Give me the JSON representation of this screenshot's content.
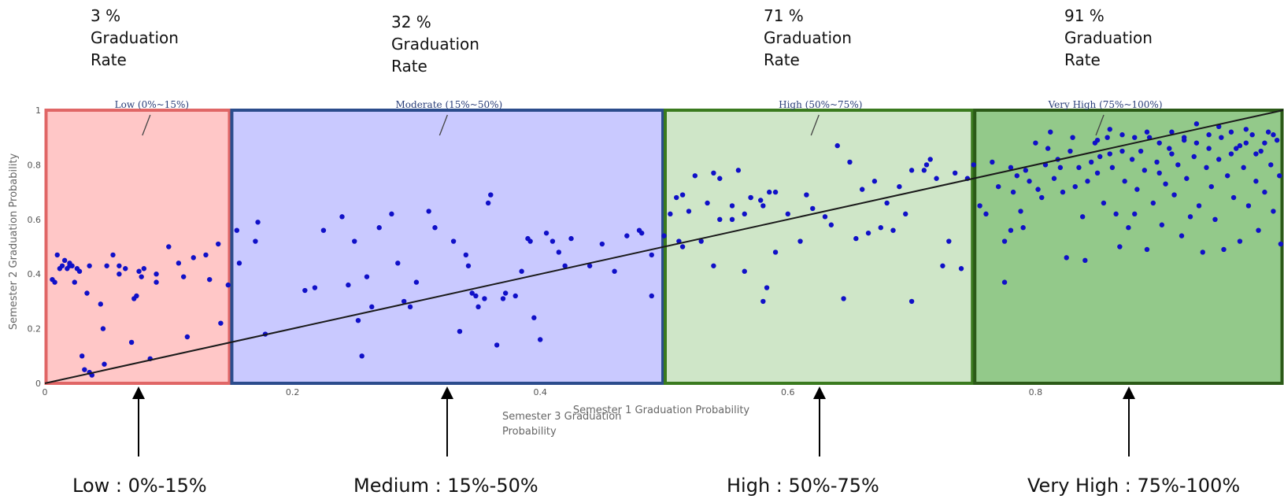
{
  "rates": [
    {
      "value": "3 %",
      "line1": "Graduation",
      "line2": "Rate"
    },
    {
      "value": "32 %",
      "line1": "Graduation",
      "line2": "Rate"
    },
    {
      "value": "71 %",
      "line1": "Graduation",
      "line2": "Rate"
    },
    {
      "value": "91 %",
      "line1": "Graduation",
      "line2": "Rate"
    }
  ],
  "bottom_labels": [
    "Low : 0%-15%",
    "Medium : 15%-50%",
    "High : 50%-75%",
    "Very High : 75%-100%"
  ],
  "overlay_xlabel_line1": "Semester 3 Graduation",
  "overlay_xlabel_line2": "Probability",
  "chart_data": {
    "type": "scatter",
    "title": "",
    "xlabel": "Semester 1 Graduation Probability",
    "ylabel": "Semester 2 Graduation Probability",
    "xlim": [
      0,
      1
    ],
    "ylim": [
      0,
      1
    ],
    "x_ticks": [
      "0",
      "0.2",
      "0.4",
      "0.6",
      "0.8"
    ],
    "x_tick_values": [
      0,
      0.2,
      0.4,
      0.6,
      0.8
    ],
    "y_ticks": [
      "0",
      "0.2",
      "0.4",
      "0.6",
      "0.8",
      "1"
    ],
    "y_tick_values": [
      0,
      0.2,
      0.4,
      0.6,
      0.8,
      1
    ],
    "grid": true,
    "trend_line": [
      [
        0,
        0
      ],
      [
        1,
        1
      ]
    ],
    "regions": [
      {
        "label": "Low (0%~15%)",
        "x0": 0,
        "x1": 0.15,
        "fill": "#ffc7c7",
        "stroke": "#e06666"
      },
      {
        "label": "Moderate (15%~50%)",
        "x0": 0.15,
        "x1": 0.5,
        "fill": "#c9c9ff",
        "stroke": "#2b4c8c"
      },
      {
        "label": "High (50%~75%)",
        "x0": 0.5,
        "x1": 0.75,
        "fill": "#cfe6c8",
        "stroke": "#3a7a1e"
      },
      {
        "label": "Very High (75%~100%)",
        "x0": 0.75,
        "x1": 1,
        "fill": "#93c98a",
        "stroke": "#2b5a17"
      }
    ],
    "point_color": "#1010c8",
    "points": [
      [
        0.006,
        0.38
      ],
      [
        0.008,
        0.37
      ],
      [
        0.01,
        0.47
      ],
      [
        0.012,
        0.42
      ],
      [
        0.014,
        0.43
      ],
      [
        0.016,
        0.45
      ],
      [
        0.018,
        0.42
      ],
      [
        0.02,
        0.44
      ],
      [
        0.022,
        0.43
      ],
      [
        0.024,
        0.37
      ],
      [
        0.026,
        0.42
      ],
      [
        0.028,
        0.41
      ],
      [
        0.02,
        0.43
      ],
      [
        0.03,
        0.1
      ],
      [
        0.032,
        0.05
      ],
      [
        0.034,
        0.33
      ],
      [
        0.036,
        0.04
      ],
      [
        0.038,
        0.03
      ],
      [
        0.036,
        0.43
      ],
      [
        0.045,
        0.29
      ],
      [
        0.047,
        0.2
      ],
      [
        0.048,
        0.07
      ],
      [
        0.05,
        0.43
      ],
      [
        0.055,
        0.47
      ],
      [
        0.06,
        0.43
      ],
      [
        0.06,
        0.4
      ],
      [
        0.065,
        0.42
      ],
      [
        0.07,
        0.15
      ],
      [
        0.072,
        0.31
      ],
      [
        0.074,
        0.32
      ],
      [
        0.076,
        0.41
      ],
      [
        0.078,
        0.39
      ],
      [
        0.08,
        0.42
      ],
      [
        0.085,
        0.09
      ],
      [
        0.09,
        0.37
      ],
      [
        0.09,
        0.4
      ],
      [
        0.1,
        0.5
      ],
      [
        0.108,
        0.44
      ],
      [
        0.112,
        0.39
      ],
      [
        0.115,
        0.17
      ],
      [
        0.12,
        0.46
      ],
      [
        0.13,
        0.47
      ],
      [
        0.133,
        0.38
      ],
      [
        0.14,
        0.51
      ],
      [
        0.142,
        0.22
      ],
      [
        0.148,
        0.36
      ],
      [
        0.155,
        0.56
      ],
      [
        0.157,
        0.44
      ],
      [
        0.17,
        0.52
      ],
      [
        0.172,
        0.59
      ],
      [
        0.178,
        0.18
      ],
      [
        0.21,
        0.34
      ],
      [
        0.218,
        0.35
      ],
      [
        0.225,
        0.56
      ],
      [
        0.24,
        0.61
      ],
      [
        0.245,
        0.36
      ],
      [
        0.25,
        0.52
      ],
      [
        0.253,
        0.23
      ],
      [
        0.256,
        0.1
      ],
      [
        0.26,
        0.39
      ],
      [
        0.264,
        0.28
      ],
      [
        0.27,
        0.57
      ],
      [
        0.28,
        0.62
      ],
      [
        0.29,
        0.3
      ],
      [
        0.285,
        0.44
      ],
      [
        0.295,
        0.28
      ],
      [
        0.3,
        0.37
      ],
      [
        0.31,
        0.63
      ],
      [
        0.315,
        0.57
      ],
      [
        0.33,
        0.52
      ],
      [
        0.335,
        0.19
      ],
      [
        0.34,
        0.47
      ],
      [
        0.342,
        0.43
      ],
      [
        0.345,
        0.33
      ],
      [
        0.348,
        0.32
      ],
      [
        0.35,
        0.28
      ],
      [
        0.355,
        0.31
      ],
      [
        0.358,
        0.66
      ],
      [
        0.36,
        0.69
      ],
      [
        0.365,
        0.14
      ],
      [
        0.37,
        0.31
      ],
      [
        0.372,
        0.33
      ],
      [
        0.38,
        0.32
      ],
      [
        0.385,
        0.41
      ],
      [
        0.39,
        0.53
      ],
      [
        0.392,
        0.52
      ],
      [
        0.395,
        0.24
      ],
      [
        0.4,
        0.16
      ],
      [
        0.405,
        0.55
      ],
      [
        0.41,
        0.52
      ],
      [
        0.415,
        0.48
      ],
      [
        0.42,
        0.43
      ],
      [
        0.425,
        0.53
      ],
      [
        0.44,
        0.43
      ],
      [
        0.45,
        0.51
      ],
      [
        0.46,
        0.41
      ],
      [
        0.47,
        0.54
      ],
      [
        0.48,
        0.56
      ],
      [
        0.482,
        0.55
      ],
      [
        0.49,
        0.47
      ],
      [
        0.49,
        0.32
      ],
      [
        0.5,
        0.54
      ],
      [
        0.515,
        0.5
      ],
      [
        0.525,
        0.76
      ],
      [
        0.54,
        0.43
      ],
      [
        0.545,
        0.6
      ],
      [
        0.555,
        0.6
      ],
      [
        0.565,
        0.41
      ],
      [
        0.57,
        0.68
      ],
      [
        0.578,
        0.67
      ],
      [
        0.58,
        0.3
      ],
      [
        0.505,
        0.62
      ],
      [
        0.51,
        0.68
      ],
      [
        0.512,
        0.52
      ],
      [
        0.515,
        0.69
      ],
      [
        0.52,
        0.63
      ],
      [
        0.53,
        0.52
      ],
      [
        0.535,
        0.66
      ],
      [
        0.54,
        0.77
      ],
      [
        0.545,
        0.75
      ],
      [
        0.555,
        0.65
      ],
      [
        0.56,
        0.78
      ],
      [
        0.565,
        0.62
      ],
      [
        0.57,
        0.68
      ],
      [
        0.58,
        0.65
      ],
      [
        0.583,
        0.35
      ],
      [
        0.585,
        0.7
      ],
      [
        0.59,
        0.48
      ],
      [
        0.59,
        0.7
      ],
      [
        0.6,
        0.62
      ],
      [
        0.61,
        0.52
      ],
      [
        0.615,
        0.69
      ],
      [
        0.62,
        0.64
      ],
      [
        0.63,
        0.61
      ],
      [
        0.635,
        0.58
      ],
      [
        0.64,
        0.87
      ],
      [
        0.645,
        0.31
      ],
      [
        0.65,
        0.81
      ],
      [
        0.655,
        0.53
      ],
      [
        0.66,
        0.71
      ],
      [
        0.665,
        0.55
      ],
      [
        0.67,
        0.74
      ],
      [
        0.675,
        0.57
      ],
      [
        0.68,
        0.66
      ],
      [
        0.685,
        0.56
      ],
      [
        0.69,
        0.72
      ],
      [
        0.695,
        0.62
      ],
      [
        0.7,
        0.3
      ],
      [
        0.7,
        0.78
      ],
      [
        0.71,
        0.78
      ],
      [
        0.712,
        0.8
      ],
      [
        0.715,
        0.82
      ],
      [
        0.72,
        0.75
      ],
      [
        0.725,
        0.43
      ],
      [
        0.73,
        0.52
      ],
      [
        0.735,
        0.77
      ],
      [
        0.74,
        0.42
      ],
      [
        0.745,
        0.75
      ],
      [
        0.75,
        0.8
      ],
      [
        0.755,
        0.65
      ],
      [
        0.76,
        0.62
      ],
      [
        0.765,
        0.81
      ],
      [
        0.77,
        0.72
      ],
      [
        0.775,
        0.37
      ],
      [
        0.775,
        0.52
      ],
      [
        0.78,
        0.79
      ],
      [
        0.78,
        0.56
      ],
      [
        0.782,
        0.7
      ],
      [
        0.785,
        0.76
      ],
      [
        0.788,
        0.63
      ],
      [
        0.79,
        0.57
      ],
      [
        0.792,
        0.78
      ],
      [
        0.795,
        0.74
      ],
      [
        0.8,
        0.88
      ],
      [
        0.802,
        0.71
      ],
      [
        0.805,
        0.68
      ],
      [
        0.808,
        0.8
      ],
      [
        0.81,
        0.86
      ],
      [
        0.812,
        0.92
      ],
      [
        0.815,
        0.75
      ],
      [
        0.818,
        0.82
      ],
      [
        0.82,
        0.79
      ],
      [
        0.822,
        0.7
      ],
      [
        0.825,
        0.46
      ],
      [
        0.828,
        0.85
      ],
      [
        0.83,
        0.9
      ],
      [
        0.832,
        0.72
      ],
      [
        0.835,
        0.79
      ],
      [
        0.838,
        0.61
      ],
      [
        0.84,
        0.45
      ],
      [
        0.842,
        0.74
      ],
      [
        0.845,
        0.81
      ],
      [
        0.848,
        0.88
      ],
      [
        0.85,
        0.77
      ],
      [
        0.852,
        0.83
      ],
      [
        0.855,
        0.66
      ],
      [
        0.858,
        0.9
      ],
      [
        0.86,
        0.84
      ],
      [
        0.862,
        0.79
      ],
      [
        0.865,
        0.62
      ],
      [
        0.868,
        0.5
      ],
      [
        0.87,
        0.85
      ],
      [
        0.872,
        0.74
      ],
      [
        0.875,
        0.57
      ],
      [
        0.878,
        0.82
      ],
      [
        0.88,
        0.62
      ],
      [
        0.882,
        0.71
      ],
      [
        0.885,
        0.85
      ],
      [
        0.888,
        0.78
      ],
      [
        0.89,
        0.49
      ],
      [
        0.892,
        0.9
      ],
      [
        0.895,
        0.66
      ],
      [
        0.898,
        0.81
      ],
      [
        0.9,
        0.77
      ],
      [
        0.902,
        0.58
      ],
      [
        0.905,
        0.73
      ],
      [
        0.908,
        0.86
      ],
      [
        0.91,
        0.84
      ],
      [
        0.912,
        0.69
      ],
      [
        0.915,
        0.8
      ],
      [
        0.918,
        0.54
      ],
      [
        0.92,
        0.9
      ],
      [
        0.922,
        0.75
      ],
      [
        0.925,
        0.61
      ],
      [
        0.928,
        0.83
      ],
      [
        0.93,
        0.88
      ],
      [
        0.932,
        0.65
      ],
      [
        0.935,
        0.48
      ],
      [
        0.938,
        0.79
      ],
      [
        0.94,
        0.86
      ],
      [
        0.942,
        0.72
      ],
      [
        0.945,
        0.6
      ],
      [
        0.948,
        0.82
      ],
      [
        0.95,
        0.9
      ],
      [
        0.952,
        0.49
      ],
      [
        0.955,
        0.76
      ],
      [
        0.958,
        0.84
      ],
      [
        0.96,
        0.68
      ],
      [
        0.962,
        0.86
      ],
      [
        0.965,
        0.52
      ],
      [
        0.968,
        0.79
      ],
      [
        0.97,
        0.88
      ],
      [
        0.972,
        0.65
      ],
      [
        0.975,
        0.91
      ],
      [
        0.978,
        0.74
      ],
      [
        0.98,
        0.56
      ],
      [
        0.982,
        0.85
      ],
      [
        0.985,
        0.7
      ],
      [
        0.988,
        0.92
      ],
      [
        0.99,
        0.8
      ],
      [
        0.992,
        0.63
      ],
      [
        0.995,
        0.89
      ],
      [
        0.997,
        0.76
      ],
      [
        0.998,
        0.51
      ],
      [
        0.992,
        0.91
      ],
      [
        0.985,
        0.88
      ],
      [
        0.978,
        0.84
      ],
      [
        0.97,
        0.93
      ],
      [
        0.965,
        0.87
      ],
      [
        0.958,
        0.92
      ],
      [
        0.948,
        0.94
      ],
      [
        0.94,
        0.91
      ],
      [
        0.93,
        0.95
      ],
      [
        0.92,
        0.89
      ],
      [
        0.91,
        0.92
      ],
      [
        0.9,
        0.88
      ],
      [
        0.89,
        0.92
      ],
      [
        0.88,
        0.9
      ],
      [
        0.87,
        0.91
      ],
      [
        0.86,
        0.93
      ],
      [
        0.85,
        0.89
      ]
    ]
  }
}
